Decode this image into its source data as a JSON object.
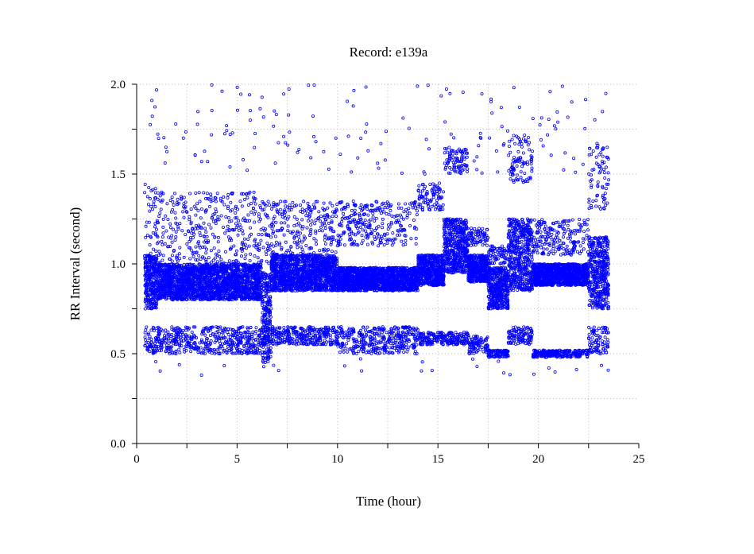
{
  "chart_data": {
    "type": "scatter",
    "title": "Record:  e139a",
    "xlabel": "Time (hour)",
    "ylabel": "RR Interval (second)",
    "xlim": [
      0,
      25
    ],
    "ylim": [
      0,
      2.0
    ],
    "x_ticks": [
      0,
      5,
      10,
      15,
      20,
      25
    ],
    "x_tick_labels": [
      "0",
      "5",
      "10",
      "15",
      "20",
      "25"
    ],
    "x_minor_ticks": [
      2.5,
      7.5,
      12.5,
      17.5,
      22.5
    ],
    "y_ticks": [
      0,
      0.5,
      1.0,
      1.5,
      2.0
    ],
    "y_tick_labels": [
      "0.0",
      "0.5",
      "1.0",
      "1.5",
      "2.0"
    ],
    "y_minor_ticks": [
      0.25,
      0.75,
      1.25,
      1.75
    ],
    "grid": true,
    "marker": "open-circle",
    "marker_color": "#0000ff",
    "x_extent": [
      0.4,
      23.5
    ],
    "series": [
      {
        "values_description_free": true,
        "segments": [
          {
            "x": [
              0.4,
              1.0
            ],
            "main_band": [
              0.75,
              1.05
            ],
            "upper_band": [
              1.0,
              1.45
            ],
            "lower_band": [
              0.5,
              0.65
            ]
          },
          {
            "x": [
              1.0,
              6.2
            ],
            "main_band": [
              0.8,
              1.0
            ],
            "upper_band": [
              1.0,
              1.4
            ],
            "lower_band": [
              0.5,
              0.65
            ]
          },
          {
            "x": [
              6.2,
              6.7
            ],
            "main_band": [
              0.55,
              0.95
            ],
            "upper_band": [
              1.0,
              1.35
            ],
            "lower_band": [
              0.45,
              0.6
            ]
          },
          {
            "x": [
              6.7,
              10.0
            ],
            "main_band": [
              0.85,
              1.05
            ],
            "upper_band": [
              1.05,
              1.35
            ],
            "lower_band": [
              0.55,
              0.65
            ]
          },
          {
            "x": [
              10.0,
              14.0
            ],
            "main_band": [
              0.85,
              0.98
            ],
            "upper_band": [
              1.1,
              1.35
            ],
            "lower_band": [
              0.5,
              0.65
            ]
          },
          {
            "x": [
              14.0,
              15.3
            ],
            "main_band": [
              0.88,
              1.05
            ],
            "upper_band": [
              1.3,
              1.45
            ],
            "lower_band": [
              0.55,
              0.62
            ]
          },
          {
            "x": [
              15.3,
              16.5
            ],
            "main_band": [
              0.95,
              1.25
            ],
            "upper_band": [
              1.5,
              1.65
            ],
            "lower_band": [
              0.55,
              0.62
            ]
          },
          {
            "x": [
              16.5,
              17.5
            ],
            "main_band": [
              0.9,
              1.05
            ],
            "upper_band": [
              1.1,
              1.2
            ],
            "lower_band": [
              0.5,
              0.6
            ]
          },
          {
            "x": [
              17.5,
              18.5
            ],
            "main_band": [
              0.75,
              0.98
            ],
            "upper_band": [
              1.0,
              1.1
            ],
            "lower_band": [
              0.48,
              0.52
            ]
          },
          {
            "x": [
              18.5,
              19.7
            ],
            "main_band": [
              0.85,
              1.25
            ],
            "upper_band": [
              1.45,
              1.72
            ],
            "lower_band": [
              0.55,
              0.65
            ]
          },
          {
            "x": [
              19.7,
              22.5
            ],
            "main_band": [
              0.88,
              1.0
            ],
            "upper_band": [
              1.05,
              1.25
            ],
            "lower_band": [
              0.48,
              0.52
            ]
          },
          {
            "x": [
              22.5,
              23.5
            ],
            "main_band": [
              0.75,
              1.15
            ],
            "upper_band": [
              1.3,
              1.65
            ],
            "lower_band": [
              0.5,
              0.65
            ]
          }
        ],
        "outlier_range": [
          1.5,
          2.0
        ]
      }
    ]
  }
}
